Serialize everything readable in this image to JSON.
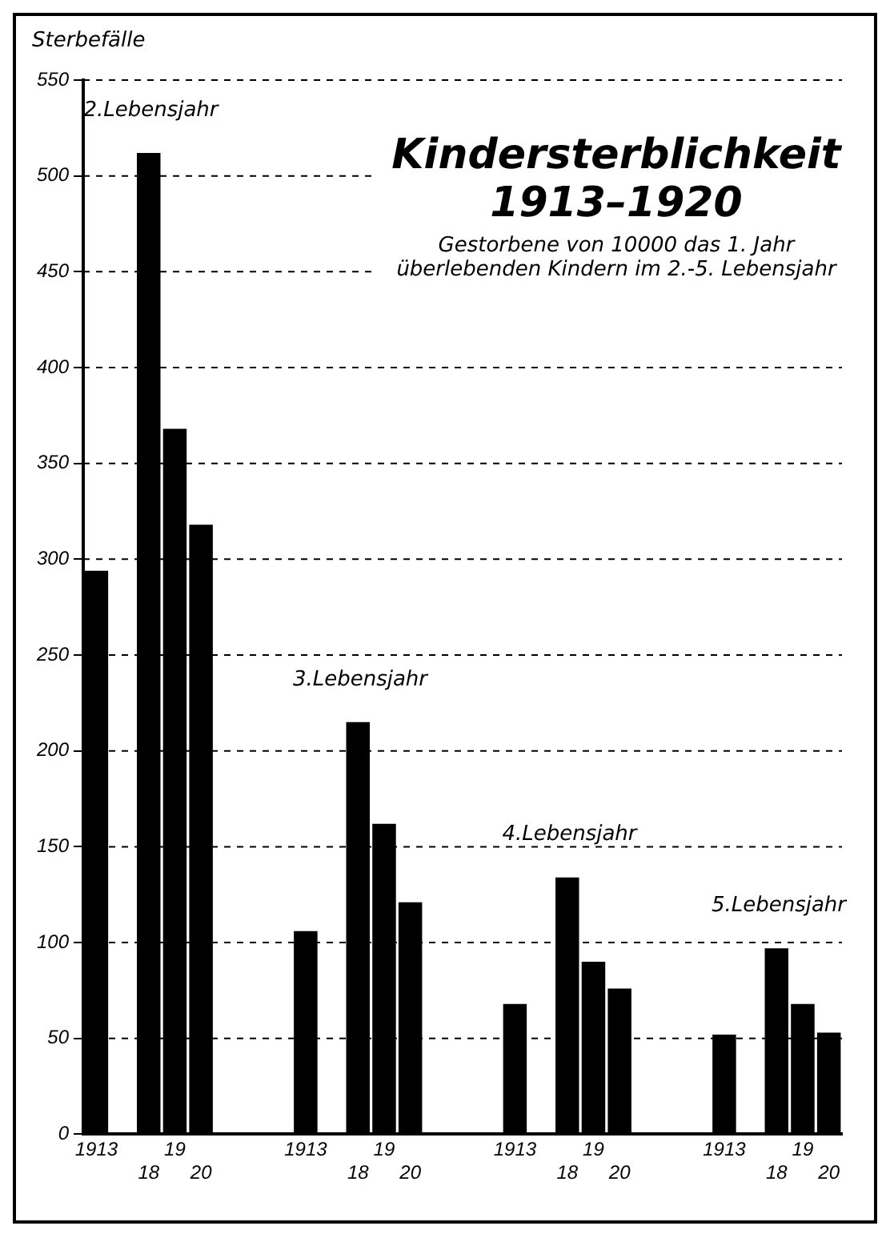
{
  "chart_data": {
    "type": "bar",
    "title": "Kindersterblichkeit 1913–1920",
    "subtitle": "Gestorbene von 10000 das 1. Jahr überlebenden Kindern im 2.-5. Lebensjahr",
    "ylabel": "Sterbefälle",
    "categories": [
      "1913",
      null,
      "18",
      "19",
      "20",
      null,
      null,
      null,
      "1913",
      null,
      "18",
      "19",
      "20",
      null,
      null,
      null,
      "1913",
      null,
      "18",
      "19",
      "20",
      null,
      null,
      null,
      "1913",
      null,
      "18",
      "19",
      "20"
    ],
    "values": [
      294,
      null,
      512,
      368,
      318,
      null,
      null,
      null,
      106,
      null,
      215,
      162,
      121,
      null,
      null,
      null,
      68,
      null,
      134,
      90,
      76,
      null,
      null,
      null,
      52,
      null,
      97,
      68,
      53
    ],
    "color": "#000000",
    "ylim": [
      0,
      550
    ],
    "yticks": [
      0,
      50,
      100,
      150,
      200,
      250,
      300,
      350,
      400,
      450,
      500,
      550
    ],
    "grid": "y",
    "line_style": "dashed",
    "annotations": [
      "2.Lebensjahr",
      "3.Lebensjahr",
      "4.Lebensjahr",
      "5.Lebensjahr"
    ]
  }
}
